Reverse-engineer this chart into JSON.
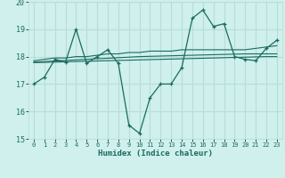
{
  "xlabel": "Humidex (Indice chaleur)",
  "background_color": "#cff0ec",
  "grid_color": "#b8ddd8",
  "line_color": "#1a6b60",
  "x_main": [
    0,
    1,
    2,
    3,
    4,
    5,
    6,
    7,
    8,
    9,
    10,
    11,
    12,
    13,
    14,
    15,
    16,
    17,
    18,
    19,
    20,
    21,
    22,
    23
  ],
  "y_main": [
    17.0,
    17.25,
    17.9,
    17.8,
    19.0,
    17.75,
    18.0,
    18.25,
    17.75,
    15.5,
    15.2,
    16.5,
    17.0,
    17.0,
    17.6,
    19.4,
    19.7,
    19.1,
    19.2,
    18.0,
    17.9,
    17.85,
    18.3,
    18.6
  ],
  "y_smooth1": [
    17.85,
    17.9,
    17.95,
    17.95,
    18.0,
    18.0,
    18.05,
    18.1,
    18.1,
    18.15,
    18.15,
    18.2,
    18.2,
    18.2,
    18.25,
    18.25,
    18.25,
    18.25,
    18.25,
    18.25,
    18.25,
    18.3,
    18.35,
    18.4
  ],
  "y_smooth2": [
    17.8,
    17.82,
    17.84,
    17.86,
    17.88,
    17.9,
    17.92,
    17.94,
    17.96,
    17.98,
    18.0,
    18.01,
    18.02,
    18.03,
    18.04,
    18.05,
    18.06,
    18.07,
    18.08,
    18.09,
    18.1,
    18.1,
    18.1,
    18.1
  ],
  "y_smooth3": [
    17.78,
    17.79,
    17.8,
    17.81,
    17.82,
    17.83,
    17.84,
    17.85,
    17.86,
    17.87,
    17.88,
    17.89,
    17.9,
    17.91,
    17.92,
    17.93,
    17.94,
    17.95,
    17.96,
    17.97,
    17.98,
    17.99,
    18.0,
    18.0
  ],
  "ylim": [
    15.0,
    20.0
  ],
  "xlim": [
    -0.5,
    23.5
  ],
  "yticks": [
    15,
    16,
    17,
    18,
    19,
    20
  ],
  "xticks": [
    0,
    1,
    2,
    3,
    4,
    5,
    6,
    7,
    8,
    9,
    10,
    11,
    12,
    13,
    14,
    15,
    16,
    17,
    18,
    19,
    20,
    21,
    22,
    23
  ]
}
